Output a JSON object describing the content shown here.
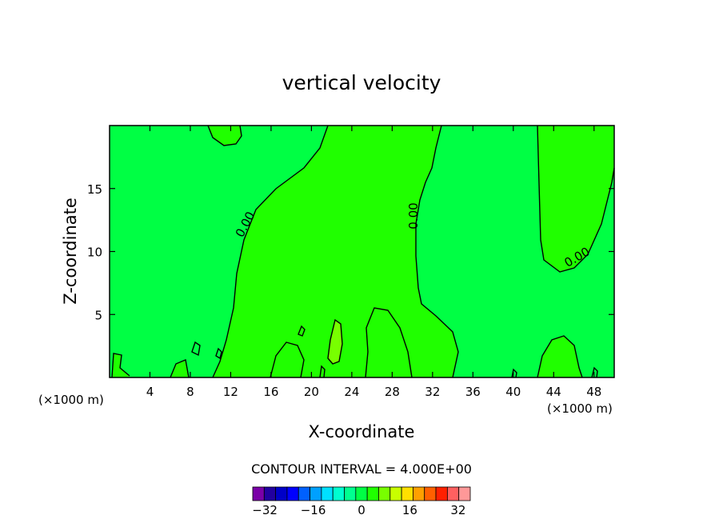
{
  "chart_data": {
    "type": "heatmap",
    "title": "vertical velocity",
    "xlabel": "X-coordinate",
    "ylabel": "Z-coordinate",
    "x_unit_left": "(×1000 m)",
    "x_unit_right": "(×1000 m)",
    "xlim": [
      0,
      50
    ],
    "ylim": [
      0,
      20
    ],
    "x_ticks": [
      4,
      8,
      12,
      16,
      20,
      24,
      28,
      32,
      36,
      40,
      44,
      48
    ],
    "x_tick_labels": [
      "4",
      "8",
      "12",
      "16",
      "20",
      "24",
      "28",
      "32",
      "36",
      "40",
      "44",
      "48"
    ],
    "y_ticks": [
      5,
      10,
      15
    ],
    "y_tick_labels": [
      "5",
      "10",
      "15"
    ],
    "contour_labels": [
      "0.00",
      "0.00",
      "0.00"
    ],
    "contour_interval_text": "CONTOUR INTERVAL = 4.000E+00",
    "colorbar": {
      "levels": [
        -36,
        -32,
        -28,
        -24,
        -20,
        -16,
        -12,
        -8,
        -4,
        0,
        4,
        8,
        12,
        16,
        20,
        24,
        28,
        32,
        36
      ],
      "tick_values": [
        -32,
        -16,
        0,
        16,
        32
      ],
      "tick_labels": [
        "−32",
        "−16",
        "0",
        "16",
        "32"
      ],
      "colors": [
        "#7a00a8",
        "#2200a0",
        "#0000c8",
        "#0000ff",
        "#0060ff",
        "#00a0ff",
        "#00e0ff",
        "#00ffd0",
        "#00ff90",
        "#00ff44",
        "#20ff00",
        "#78ff00",
        "#c8ff00",
        "#ffe000",
        "#ffa000",
        "#ff6000",
        "#ff2000",
        "#ff6060",
        "#ff9898"
      ]
    },
    "background_color": "#00ff44",
    "positive_region_color": "#20ff00",
    "max_region_color": "#78ff00",
    "grid": false
  }
}
